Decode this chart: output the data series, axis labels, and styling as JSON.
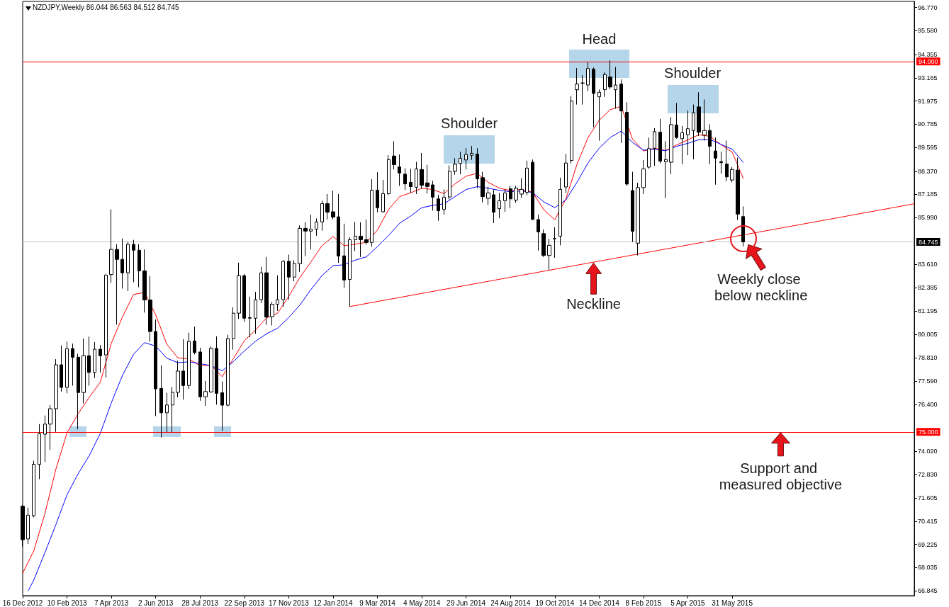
{
  "chart_data": {
    "type": "candlestick",
    "title": "NZDJPY,Weekly 86.044 86.563 84.512 84.745",
    "color": "#000000",
    "x": [
      "2012-12-16",
      "2012-12-23",
      "2012-12-30",
      "2013-01-06",
      "2013-01-13",
      "2013-01-20",
      "2013-01-27",
      "2013-02-03",
      "2013-02-10",
      "2013-02-17",
      "2013-02-24",
      "2013-03-03",
      "2013-03-10",
      "2013-03-17",
      "2013-03-24",
      "2013-03-31",
      "2013-04-07",
      "2013-04-14",
      "2013-04-21",
      "2013-04-28",
      "2013-05-05",
      "2013-05-12",
      "2013-05-19",
      "2013-05-26",
      "2013-06-02",
      "2013-06-09",
      "2013-06-16",
      "2013-06-23",
      "2013-06-30",
      "2013-07-07",
      "2013-07-14",
      "2013-07-21",
      "2013-07-28",
      "2013-08-04",
      "2013-08-11",
      "2013-08-18",
      "2013-08-25",
      "2013-09-01",
      "2013-09-08",
      "2013-09-15",
      "2013-09-22",
      "2013-09-29",
      "2013-10-06",
      "2013-10-13",
      "2013-10-20",
      "2013-10-27",
      "2013-11-03",
      "2013-11-10",
      "2013-11-17",
      "2013-11-24",
      "2013-12-01",
      "2013-12-08",
      "2013-12-15",
      "2013-12-22",
      "2013-12-29",
      "2014-01-05",
      "2014-01-12",
      "2014-01-19",
      "2014-01-26",
      "2014-02-02",
      "2014-02-09",
      "2014-02-16",
      "2014-02-23",
      "2014-03-02",
      "2014-03-09",
      "2014-03-16",
      "2014-03-23",
      "2014-03-30",
      "2014-04-06",
      "2014-04-13",
      "2014-04-20",
      "2014-04-27",
      "2014-05-04",
      "2014-05-11",
      "2014-05-18",
      "2014-05-25",
      "2014-06-01",
      "2014-06-08",
      "2014-06-15",
      "2014-06-22",
      "2014-06-29",
      "2014-07-06",
      "2014-07-13",
      "2014-07-20",
      "2014-07-27",
      "2014-08-03",
      "2014-08-10",
      "2014-08-17",
      "2014-08-24",
      "2014-08-31",
      "2014-09-07",
      "2014-09-14",
      "2014-09-21",
      "2014-09-28",
      "2014-10-05",
      "2014-10-12",
      "2014-10-19",
      "2014-10-26",
      "2014-11-02",
      "2014-11-09",
      "2014-11-16",
      "2014-11-23",
      "2014-11-30",
      "2014-12-07",
      "2014-12-14",
      "2014-12-21",
      "2014-12-28",
      "2015-01-04",
      "2015-01-11",
      "2015-01-18",
      "2015-01-25",
      "2015-02-01",
      "2015-02-08",
      "2015-02-15",
      "2015-02-22",
      "2015-03-01",
      "2015-03-08",
      "2015-03-15",
      "2015-03-22",
      "2015-03-29",
      "2015-04-05",
      "2015-04-12",
      "2015-04-19",
      "2015-04-26",
      "2015-05-03",
      "2015-05-10",
      "2015-05-17",
      "2015-05-24",
      "2015-05-31",
      "2015-06-07",
      "2015-06-14"
    ],
    "ohlc": [
      [
        71.19,
        71.25,
        69.12,
        69.47
      ],
      [
        69.51,
        71.11,
        69.25,
        70.73
      ],
      [
        70.7,
        73.52,
        70.62,
        73.34
      ],
      [
        73.33,
        75.4,
        72.58,
        74.91
      ],
      [
        74.88,
        75.84,
        73.46,
        75.4
      ],
      [
        75.4,
        76.37,
        74.07,
        76.19
      ],
      [
        76.19,
        78.73,
        75.0,
        78.44
      ],
      [
        78.44,
        79.43,
        77.07,
        77.28
      ],
      [
        77.28,
        79.63,
        76.98,
        79.27
      ],
      [
        79.27,
        79.53,
        77.37,
        78.83
      ],
      [
        78.83,
        79.01,
        75.13,
        77.02
      ],
      [
        77.02,
        79.79,
        76.46,
        78.91
      ],
      [
        78.91,
        79.89,
        77.37,
        78.05
      ],
      [
        78.05,
        79.61,
        77.76,
        79.24
      ],
      [
        79.24,
        79.46,
        78.05,
        78.91
      ],
      [
        78.95,
        83.1,
        77.79,
        83.04
      ],
      [
        83.07,
        86.41,
        82.65,
        84.36
      ],
      [
        84.36,
        84.62,
        80.5,
        83.85
      ],
      [
        83.85,
        84.92,
        82.35,
        83.16
      ],
      [
        83.16,
        84.75,
        82.22,
        84.62
      ],
      [
        84.62,
        84.85,
        82.68,
        84.32
      ],
      [
        84.32,
        84.62,
        82.42,
        83.26
      ],
      [
        83.26,
        84.36,
        81.12,
        81.77
      ],
      [
        81.77,
        83.0,
        79.63,
        80.15
      ],
      [
        80.15,
        80.76,
        75.81,
        77.21
      ],
      [
        77.23,
        78.41,
        74.71,
        75.98
      ],
      [
        75.98,
        77.0,
        74.99,
        76.38
      ],
      [
        76.38,
        77.3,
        74.99,
        77.03
      ],
      [
        77.03,
        78.65,
        76.77,
        78.12
      ],
      [
        78.12,
        79.76,
        76.66,
        77.38
      ],
      [
        77.38,
        80.09,
        77.2,
        79.64
      ],
      [
        79.66,
        80.4,
        78.98,
        79.07
      ],
      [
        79.1,
        79.32,
        76.6,
        76.8
      ],
      [
        76.8,
        77.61,
        76.34,
        77.07
      ],
      [
        77.05,
        79.38,
        77.01,
        79.28
      ],
      [
        79.28,
        79.9,
        76.4,
        76.98
      ],
      [
        77.01,
        77.59,
        75.05,
        76.37
      ],
      [
        76.37,
        79.98,
        76.3,
        79.79
      ],
      [
        79.79,
        81.39,
        79.22,
        81.09
      ],
      [
        81.09,
        83.68,
        80.79,
        83.01
      ],
      [
        83.01,
        83.09,
        80.65,
        80.83
      ],
      [
        80.83,
        81.94,
        79.85,
        80.86
      ],
      [
        80.83,
        82.18,
        80.03,
        81.78
      ],
      [
        81.78,
        83.46,
        81.61,
        83.16
      ],
      [
        83.16,
        83.97,
        80.49,
        80.89
      ],
      [
        80.91,
        81.66,
        80.46,
        81.55
      ],
      [
        81.55,
        83.03,
        81.21,
        81.78
      ],
      [
        81.78,
        83.81,
        81.42,
        83.75
      ],
      [
        83.75,
        84.09,
        81.78,
        82.94
      ],
      [
        82.94,
        83.81,
        82.72,
        83.63
      ],
      [
        83.63,
        85.59,
        83.21,
        85.44
      ],
      [
        85.44,
        85.75,
        84.02,
        85.3
      ],
      [
        85.3,
        86.14,
        84.36,
        85.4
      ],
      [
        85.4,
        85.95,
        85.06,
        85.77
      ],
      [
        85.77,
        86.86,
        85.32,
        86.71
      ],
      [
        86.71,
        87.2,
        85.9,
        86.27
      ],
      [
        86.29,
        87.38,
        85.9,
        86.02
      ],
      [
        86.03,
        87.2,
        83.67,
        84.02
      ],
      [
        84.03,
        85.68,
        82.39,
        82.79
      ],
      [
        82.82,
        84.98,
        81.43,
        84.86
      ],
      [
        84.86,
        85.77,
        84.27,
        85.04
      ],
      [
        85.04,
        85.75,
        83.97,
        84.86
      ],
      [
        84.86,
        85.89,
        84.6,
        84.72
      ],
      [
        84.72,
        87.96,
        84.5,
        87.4
      ],
      [
        87.4,
        88.32,
        86.27,
        86.5
      ],
      [
        86.29,
        87.92,
        86.25,
        87.22
      ],
      [
        87.22,
        89.19,
        87.14,
        88.97
      ],
      [
        89.15,
        89.91,
        88.46,
        88.71
      ],
      [
        88.59,
        89.23,
        87.62,
        88.28
      ],
      [
        88.22,
        88.52,
        87.41,
        87.72
      ],
      [
        87.8,
        88.49,
        87.26,
        87.58
      ],
      [
        87.55,
        88.85,
        87.2,
        88.49
      ],
      [
        88.46,
        89.31,
        87.47,
        87.65
      ],
      [
        87.77,
        88.7,
        87.22,
        87.59
      ],
      [
        87.67,
        87.88,
        86.35,
        87.04
      ],
      [
        86.95,
        87.16,
        85.83,
        86.34
      ],
      [
        86.41,
        87.44,
        86.14,
        87.04
      ],
      [
        87.05,
        88.67,
        86.92,
        88.37
      ],
      [
        88.37,
        89.04,
        88.19,
        88.73
      ],
      [
        88.77,
        89.37,
        88.22,
        89.03
      ],
      [
        88.95,
        89.55,
        88.46,
        89.23
      ],
      [
        89.19,
        89.67,
        88.95,
        89.29
      ],
      [
        89.25,
        89.55,
        87.5,
        87.98
      ],
      [
        88.04,
        88.34,
        86.77,
        87.07
      ],
      [
        86.98,
        87.58,
        86.65,
        87.26
      ],
      [
        87.16,
        87.44,
        85.71,
        86.27
      ],
      [
        86.45,
        87.26,
        85.96,
        86.86
      ],
      [
        86.86,
        87.44,
        86.29,
        87.26
      ],
      [
        87.47,
        87.62,
        86.47,
        86.95
      ],
      [
        86.89,
        87.62,
        86.75,
        87.5
      ],
      [
        87.2,
        88.02,
        87.01,
        87.44
      ],
      [
        87.29,
        88.91,
        87.14,
        88.53
      ],
      [
        88.83,
        88.97,
        85.87,
        85.9
      ],
      [
        85.89,
        86.14,
        84.3,
        85.26
      ],
      [
        85.17,
        85.38,
        83.97,
        84.05
      ],
      [
        84.05,
        84.9,
        83.29,
        84.57
      ],
      [
        84.9,
        85.5,
        83.93,
        84.92
      ],
      [
        85.04,
        88.04,
        84.57,
        87.44
      ],
      [
        87.56,
        89.25,
        87.26,
        88.79
      ],
      [
        88.92,
        92.23,
        88.77,
        91.97
      ],
      [
        92.55,
        93.66,
        91.79,
        92.84
      ],
      [
        92.88,
        93.3,
        91.79,
        92.9
      ],
      [
        92.79,
        93.96,
        92.48,
        93.64
      ],
      [
        93.6,
        93.69,
        90.62,
        92.36
      ],
      [
        92.19,
        92.57,
        89.94,
        92.42
      ],
      [
        92.55,
        93.44,
        92.19,
        93.33
      ],
      [
        93.2,
        94.05,
        92.57,
        92.69
      ],
      [
        92.55,
        93.72,
        91.58,
        92.79
      ],
      [
        92.84,
        93.08,
        89.82,
        91.46
      ],
      [
        91.39,
        91.91,
        87.62,
        87.71
      ],
      [
        87.38,
        88.34,
        84.74,
        85.29
      ],
      [
        84.68,
        87.78,
        84.05,
        87.53
      ],
      [
        87.53,
        88.95,
        87.2,
        88.49
      ],
      [
        88.58,
        90.09,
        88.5,
        89.53
      ],
      [
        89.55,
        90.58,
        88.65,
        90.4
      ],
      [
        90.37,
        91.06,
        88.77,
        88.89
      ],
      [
        88.85,
        89.91,
        86.99,
        88.97
      ],
      [
        88.83,
        91.15,
        88.22,
        90.76
      ],
      [
        90.74,
        91.87,
        90.04,
        90.1
      ],
      [
        90.04,
        90.7,
        88.73,
        90.34
      ],
      [
        90.24,
        91.49,
        89.19,
        90.55
      ],
      [
        90.46,
        91.79,
        88.98,
        91.37
      ],
      [
        91.67,
        92.42,
        90.18,
        90.37
      ],
      [
        90.22,
        92.05,
        89.94,
        90.46
      ],
      [
        90.46,
        90.78,
        88.73,
        89.65
      ],
      [
        89.41,
        90.1,
        87.68,
        89.04
      ],
      [
        88.86,
        89.37,
        88.25,
        88.81
      ],
      [
        88.74,
        89.94,
        87.86,
        88.08
      ],
      [
        87.92,
        88.59,
        87.8,
        88.46
      ],
      [
        88.43,
        89.07,
        85.87,
        86.17
      ],
      [
        86.044,
        86.563,
        84.512,
        84.745
      ]
    ],
    "series": [
      {
        "type": "line",
        "color": "#ff0000",
        "x": [
          "2012-12-16",
          "2012-12-30",
          "2013-01-13",
          "2013-01-27",
          "2013-02-10",
          "2013-02-24",
          "2013-03-10",
          "2013-03-24",
          "2013-04-07",
          "2013-04-21",
          "2013-05-05",
          "2013-05-19",
          "2013-06-02",
          "2013-06-16",
          "2013-06-30",
          "2013-07-14",
          "2013-07-28",
          "2013-08-11",
          "2013-08-25",
          "2013-09-08",
          "2013-09-22",
          "2013-10-06",
          "2013-10-20",
          "2013-11-03",
          "2013-11-17",
          "2013-12-01",
          "2013-12-15",
          "2013-12-29",
          "2014-01-12",
          "2014-01-26",
          "2014-02-09",
          "2014-02-23",
          "2014-03-09",
          "2014-03-23",
          "2014-04-06",
          "2014-04-20",
          "2014-05-04",
          "2014-05-18",
          "2014-06-01",
          "2014-06-15",
          "2014-06-29",
          "2014-07-13",
          "2014-07-27",
          "2014-08-10",
          "2014-08-24",
          "2014-09-07",
          "2014-09-21",
          "2014-10-05",
          "2014-10-19",
          "2014-11-02",
          "2014-11-16",
          "2014-11-30",
          "2014-12-14",
          "2014-12-28",
          "2015-01-11",
          "2015-01-25",
          "2015-02-08",
          "2015-02-22",
          "2015-03-08",
          "2015-03-22",
          "2015-04-05",
          "2015-04-19",
          "2015-05-03",
          "2015-05-17",
          "2015-05-31",
          "2015-06-14"
        ],
        "values": [
          67.75,
          68.9,
          70.8,
          73.1,
          74.95,
          75.93,
          76.77,
          77.55,
          79.55,
          80.9,
          82.05,
          82.15,
          81.0,
          79.5,
          78.8,
          78.74,
          78.4,
          78.41,
          77.83,
          78.75,
          79.68,
          80.22,
          80.85,
          81.09,
          81.95,
          82.91,
          83.72,
          84.55,
          85.02,
          84.55,
          84.63,
          84.72,
          85.35,
          86.4,
          87.07,
          87.26,
          87.5,
          87.43,
          87.22,
          87.72,
          88.12,
          88.26,
          87.8,
          87.5,
          87.38,
          87.44,
          87.3,
          86.4,
          85.88,
          86.95,
          88.72,
          90.1,
          90.98,
          91.53,
          91.7,
          90.03,
          89.41,
          89.55,
          89.43,
          89.72,
          89.98,
          90.24,
          90.16,
          89.73,
          89.35,
          88.0
        ]
      },
      {
        "type": "line",
        "color": "#0000ff",
        "x": [
          "2012-12-23",
          "2012-12-30",
          "2013-01-13",
          "2013-01-27",
          "2013-02-10",
          "2013-02-24",
          "2013-03-10",
          "2013-03-24",
          "2013-04-07",
          "2013-04-21",
          "2013-05-05",
          "2013-05-19",
          "2013-06-02",
          "2013-06-16",
          "2013-06-30",
          "2013-07-14",
          "2013-07-28",
          "2013-08-11",
          "2013-08-25",
          "2013-09-08",
          "2013-09-22",
          "2013-10-06",
          "2013-10-20",
          "2013-11-03",
          "2013-11-17",
          "2013-12-01",
          "2013-12-15",
          "2013-12-29",
          "2014-01-12",
          "2014-01-26",
          "2014-02-09",
          "2014-02-23",
          "2014-03-09",
          "2014-03-23",
          "2014-04-06",
          "2014-04-20",
          "2014-05-04",
          "2014-05-18",
          "2014-06-01",
          "2014-06-15",
          "2014-06-29",
          "2014-07-13",
          "2014-07-27",
          "2014-08-10",
          "2014-08-24",
          "2014-09-07",
          "2014-09-21",
          "2014-10-05",
          "2014-10-19",
          "2014-11-02",
          "2014-11-16",
          "2014-11-30",
          "2014-12-14",
          "2014-12-28",
          "2015-01-11",
          "2015-01-25",
          "2015-02-08",
          "2015-02-22",
          "2015-03-08",
          "2015-03-22",
          "2015-04-05",
          "2015-04-19",
          "2015-05-03",
          "2015-05-17",
          "2015-05-31",
          "2015-06-14"
        ],
        "values": [
          66.85,
          67.4,
          68.8,
          70.25,
          71.78,
          72.85,
          73.78,
          74.92,
          76.5,
          77.9,
          78.98,
          79.58,
          79.4,
          78.78,
          78.55,
          78.6,
          78.5,
          78.4,
          78.13,
          78.6,
          79.15,
          79.65,
          80.03,
          80.32,
          80.87,
          81.5,
          82.3,
          83.02,
          83.53,
          83.57,
          83.81,
          83.98,
          84.5,
          85.07,
          85.7,
          86.07,
          86.5,
          86.62,
          86.7,
          87.07,
          87.43,
          87.58,
          87.5,
          87.39,
          87.32,
          87.36,
          87.28,
          86.8,
          86.5,
          86.9,
          87.8,
          88.8,
          89.55,
          90.1,
          90.43,
          89.85,
          89.45,
          89.5,
          89.42,
          89.65,
          89.8,
          89.99,
          90.0,
          89.75,
          89.5,
          88.83
        ]
      },
      {
        "type": "line",
        "color": "#ff0000",
        "x": [
          "2014-02-02",
          "2016-01-16"
        ],
        "values": [
          81.43,
          86.7
        ]
      }
    ],
    "xlim": [
      "2012-12-16",
      "2016-01-16"
    ],
    "xticks": [
      {
        "value": "2012-12-16",
        "label": "16 Dec 2012"
      },
      {
        "value": "2013-02-10",
        "label": "10 Feb 2013"
      },
      {
        "value": "2013-04-07",
        "label": "7 Apr 2013"
      },
      {
        "value": "2013-06-02",
        "label": "2 Jun 2013"
      },
      {
        "value": "2013-07-28",
        "label": "28 Jul 2013"
      },
      {
        "value": "2013-09-22",
        "label": "22 Sep 2013"
      },
      {
        "value": "2013-11-17",
        "label": "17 Nov 2013"
      },
      {
        "value": "2014-01-12",
        "label": "12 Jan 2014"
      },
      {
        "value": "2014-03-09",
        "label": "9 Mar 2014"
      },
      {
        "value": "2014-05-04",
        "label": "4 May 2014"
      },
      {
        "value": "2014-06-29",
        "label": "29 Jun 2014"
      },
      {
        "value": "2014-08-24",
        "label": "24 Aug 2014"
      },
      {
        "value": "2014-10-19",
        "label": "19 Oct 2014"
      },
      {
        "value": "2014-12-14",
        "label": "14 Dec 2014"
      },
      {
        "value": "2015-02-08",
        "label": "8 Feb 2015"
      },
      {
        "value": "2015-04-05",
        "label": "5 Apr 2015"
      },
      {
        "value": "2015-05-31",
        "label": "31 May 2015"
      }
    ],
    "ylim": [
      66.6,
      97.08
    ],
    "yticks": [
      {
        "value": 96.77,
        "label": "96.770"
      },
      {
        "value": 95.58,
        "label": "95.580"
      },
      94.355,
      93.165,
      91.975,
      90.785,
      89.595,
      {
        "value": 88.37,
        "label": "88.370"
      },
      87.185,
      {
        "value": 85.99,
        "label": "85.990"
      },
      {
        "value": 83.61,
        "label": "83.610"
      },
      82.385,
      81.195,
      80.005,
      {
        "value": 78.81,
        "label": "78.810"
      },
      {
        "value": 77.59,
        "label": "77.590"
      },
      {
        "value": 76.4,
        "label": "76.400"
      },
      {
        "value": 74.02,
        "label": "74.020"
      },
      {
        "value": 72.83,
        "label": "72.830"
      },
      71.605,
      70.415,
      69.225,
      68.035,
      66.845
    ],
    "ref_lines": [
      {
        "axis": "y",
        "value": 94,
        "label": "94.000",
        "color": "#ff0000"
      },
      {
        "axis": "y",
        "value": 75,
        "label": "75.000",
        "color": "#ff0000"
      },
      {
        "axis": "y",
        "value": 84.745,
        "label": "84.745",
        "color": "#c0c0c0"
      }
    ],
    "annotations": [
      {
        "text": "Head",
        "x": "2014-12-14",
        "y": 93.9
      },
      {
        "text": "Shoulder",
        "x": "2014-07-03",
        "y": 89.5
      },
      {
        "text": "Shoulder",
        "x": "2015-04-19",
        "y": 92.42
      },
      {
        "text": "Neckline",
        "x": "2014-12-07",
        "y": 83.7
      },
      {
        "text": "Weekly close below neckline",
        "x": "2015-06-14",
        "y": 84.745
      },
      {
        "text": "Support and measured objective",
        "x": "2015-08-02",
        "y": 75
      }
    ]
  }
}
